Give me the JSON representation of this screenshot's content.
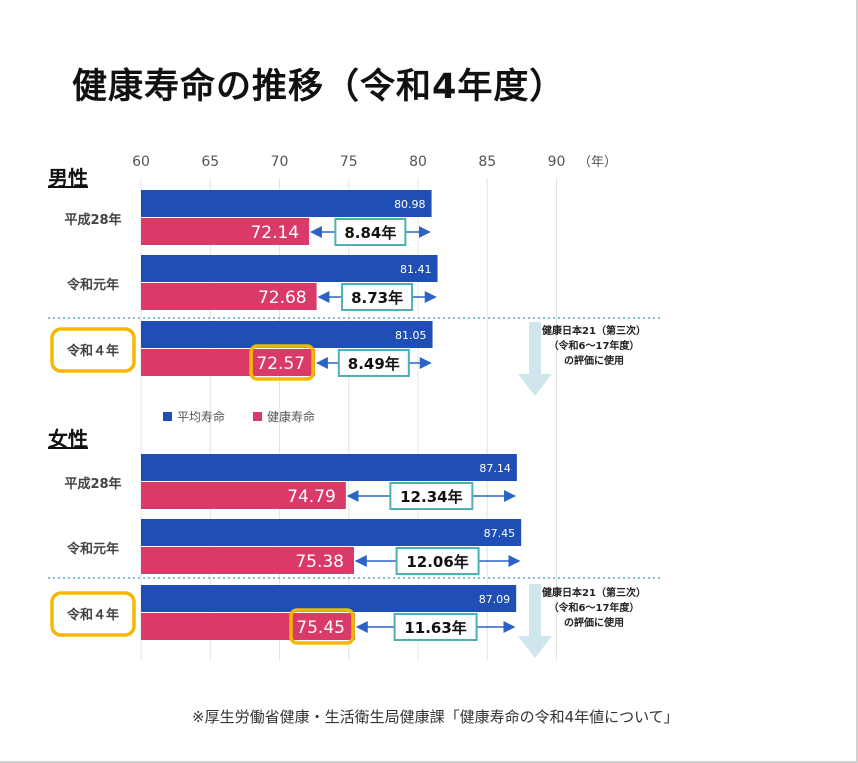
{
  "title": "健康寿命の推移（令和4年度）",
  "source": "※厚生労働省健康・生活衛生局健康課「健康寿命の令和4年値について」",
  "chart_data": {
    "type": "bar",
    "orientation": "horizontal",
    "x_ticks": [
      60,
      65,
      70,
      75,
      80,
      85,
      90
    ],
    "x_unit": "（年）",
    "xlim": [
      60,
      90
    ],
    "grid": true,
    "legend": {
      "placement": "between-sections",
      "items": [
        {
          "name": "平均寿命",
          "color": "#1f4fb5"
        },
        {
          "name": "健康寿命",
          "color": "#d93a68"
        }
      ]
    },
    "note": [
      "健康日本21（第三次）",
      "（令和6～17年度）",
      "の評価に使用"
    ],
    "sections": [
      {
        "label": "男性",
        "rows": [
          {
            "label": "平成28年",
            "life": 80.98,
            "healthy": 72.14,
            "gap": "8.84年",
            "highlight": false
          },
          {
            "label": "令和元年",
            "life": 81.41,
            "healthy": 72.68,
            "gap": "8.73年",
            "highlight": false
          },
          {
            "label": "令和４年",
            "life": 81.05,
            "healthy": 72.57,
            "gap": "8.49年",
            "highlight": true
          }
        ]
      },
      {
        "label": "女性",
        "rows": [
          {
            "label": "平成28年",
            "life": 87.14,
            "healthy": 74.79,
            "gap": "12.34年",
            "highlight": false
          },
          {
            "label": "令和元年",
            "life": 87.45,
            "healthy": 75.38,
            "gap": "12.06年",
            "highlight": false
          },
          {
            "label": "令和４年",
            "life": 87.09,
            "healthy": 75.45,
            "gap": "11.63年",
            "highlight": true
          }
        ]
      }
    ],
    "colors": {
      "life": "#1f4fb5",
      "healthy": "#d93a68",
      "gap_box": "#4fb0b3",
      "arrow": "#2b63c6",
      "highlight": "#f5b800",
      "note_arrow": "#cfe7ec",
      "divider": "#7fc0cf"
    }
  }
}
